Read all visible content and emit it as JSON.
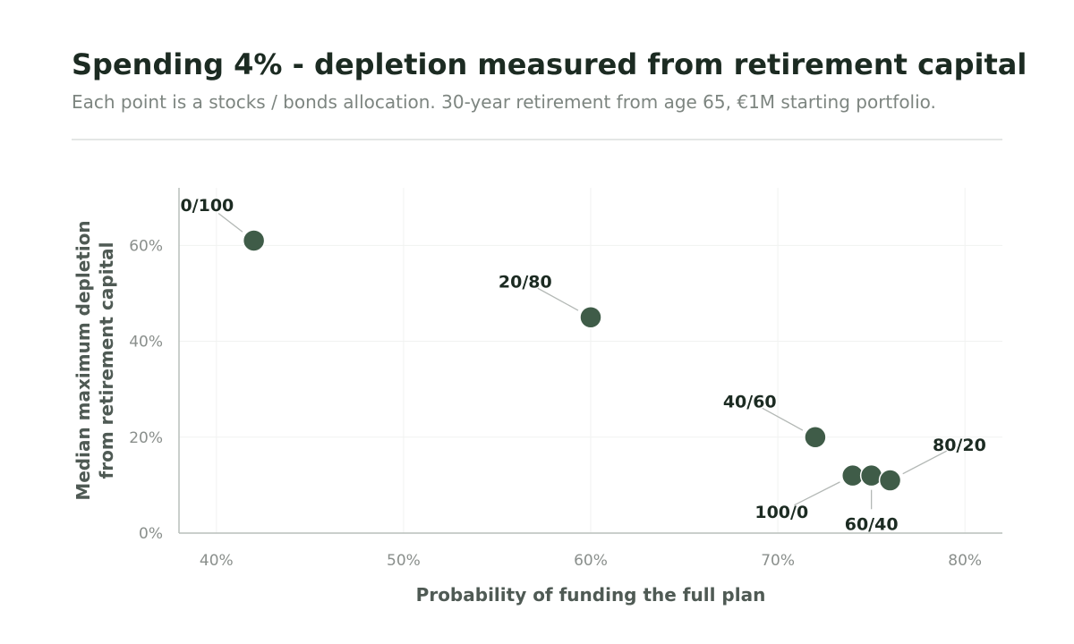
{
  "chart_data": {
    "type": "scatter",
    "title": "Spending 4% - depletion measured from retirement capital",
    "subtitle": "Each point is a stocks / bonds allocation. 30-year retirement from age 65, €1M starting portfolio.",
    "xlabel": "Probability of funding the full plan",
    "ylabel_lines": [
      "Median maximum depletion",
      "from retirement capital"
    ],
    "xlim": [
      38,
      82
    ],
    "ylim": [
      0,
      72
    ],
    "x_ticks": [
      40,
      50,
      60,
      70,
      80
    ],
    "x_tick_labels": [
      "40%",
      "50%",
      "60%",
      "70%",
      "80%"
    ],
    "y_ticks": [
      0,
      20,
      40,
      60
    ],
    "y_tick_labels": [
      "0%",
      "20%",
      "40%",
      "60%"
    ],
    "grid": true,
    "point_color": "#3f5c48",
    "points": [
      {
        "label": "0/100",
        "x": 42,
        "y": 61,
        "label_x": 39.5,
        "label_y": 68.5
      },
      {
        "label": "20/80",
        "x": 60,
        "y": 45,
        "label_x": 56.5,
        "label_y": 52.5
      },
      {
        "label": "40/60",
        "x": 72,
        "y": 20,
        "label_x": 68.5,
        "label_y": 27.5
      },
      {
        "label": "100/0",
        "x": 74,
        "y": 12,
        "label_x": 70.2,
        "label_y": 4.5
      },
      {
        "label": "60/40",
        "x": 75,
        "y": 12,
        "label_x": 75,
        "label_y": 2
      },
      {
        "label": "80/20",
        "x": 76,
        "y": 11,
        "label_x": 79.7,
        "label_y": 18.5
      }
    ]
  }
}
